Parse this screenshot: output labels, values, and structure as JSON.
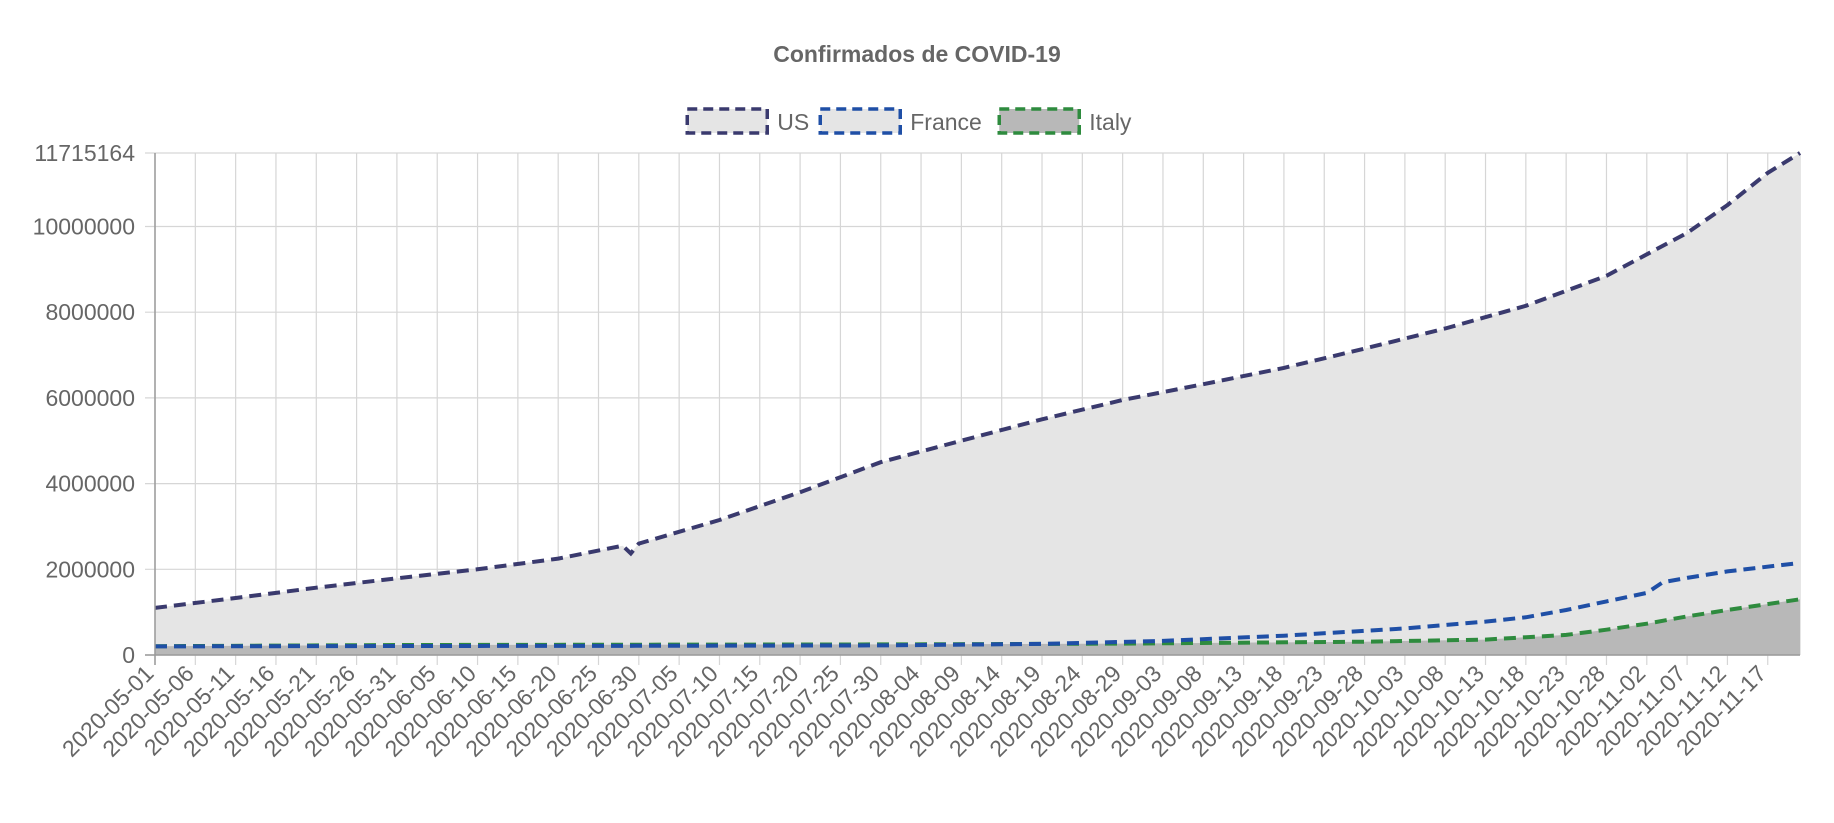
{
  "chart_data": {
    "type": "line",
    "title": "Confirmados de COVID-19",
    "legend_position": "top",
    "grid": true,
    "fill": true,
    "line_style": "dashed",
    "x_tick_labels": [
      "2020-05-01",
      "2020-05-06",
      "2020-05-11",
      "2020-05-16",
      "2020-05-21",
      "2020-05-26",
      "2020-05-31",
      "2020-06-05",
      "2020-06-10",
      "2020-06-15",
      "2020-06-20",
      "2020-06-25",
      "2020-06-30",
      "2020-07-05",
      "2020-07-10",
      "2020-07-15",
      "2020-07-20",
      "2020-07-25",
      "2020-07-30",
      "2020-08-04",
      "2020-08-09",
      "2020-08-14",
      "2020-08-19",
      "2020-08-24",
      "2020-08-29",
      "2020-09-03",
      "2020-09-08",
      "2020-09-13",
      "2020-09-18",
      "2020-09-23",
      "2020-09-28",
      "2020-10-03",
      "2020-10-08",
      "2020-10-13",
      "2020-10-18",
      "2020-10-23",
      "2020-10-28",
      "2020-11-02",
      "2020-11-07",
      "2020-11-12",
      "2020-11-17"
    ],
    "x_range": [
      "2020-05-01",
      "2020-11-21"
    ],
    "y_ticks": [
      0,
      2000000,
      4000000,
      6000000,
      8000000,
      10000000,
      11715164
    ],
    "ylim": [
      0,
      11715164
    ],
    "series": [
      {
        "name": "US",
        "color": "#3a3a6e",
        "fill_color": "#e5e5e5",
        "points": [
          [
            "2020-05-01",
            1100000
          ],
          [
            "2020-05-11",
            1330000
          ],
          [
            "2020-05-21",
            1570000
          ],
          [
            "2020-05-31",
            1790000
          ],
          [
            "2020-06-10",
            2000000
          ],
          [
            "2020-06-20",
            2250000
          ],
          [
            "2020-06-28",
            2550000
          ],
          [
            "2020-06-29",
            2370000
          ],
          [
            "2020-06-30",
            2600000
          ],
          [
            "2020-07-10",
            3150000
          ],
          [
            "2020-07-20",
            3800000
          ],
          [
            "2020-07-30",
            4500000
          ],
          [
            "2020-08-09",
            5000000
          ],
          [
            "2020-08-19",
            5500000
          ],
          [
            "2020-08-29",
            5950000
          ],
          [
            "2020-09-08",
            6320000
          ],
          [
            "2020-09-18",
            6700000
          ],
          [
            "2020-09-28",
            7150000
          ],
          [
            "2020-10-08",
            7620000
          ],
          [
            "2020-10-18",
            8150000
          ],
          [
            "2020-10-28",
            8850000
          ],
          [
            "2020-11-07",
            9850000
          ],
          [
            "2020-11-12",
            10500000
          ],
          [
            "2020-11-17",
            11250000
          ],
          [
            "2020-11-21",
            11715164
          ]
        ]
      },
      {
        "name": "France",
        "color": "#1f4fa6",
        "fill_color": "#e5e5e5",
        "points": [
          [
            "2020-05-01",
            200000
          ],
          [
            "2020-06-01",
            210000
          ],
          [
            "2020-07-01",
            215000
          ],
          [
            "2020-07-30",
            225000
          ],
          [
            "2020-08-19",
            260000
          ],
          [
            "2020-09-03",
            330000
          ],
          [
            "2020-09-18",
            450000
          ],
          [
            "2020-10-03",
            620000
          ],
          [
            "2020-10-13",
            780000
          ],
          [
            "2020-10-18",
            880000
          ],
          [
            "2020-10-23",
            1050000
          ],
          [
            "2020-10-28",
            1250000
          ],
          [
            "2020-11-02",
            1450000
          ],
          [
            "2020-11-04",
            1700000
          ],
          [
            "2020-11-07",
            1800000
          ],
          [
            "2020-11-12",
            1950000
          ],
          [
            "2020-11-21",
            2150000
          ]
        ]
      },
      {
        "name": "Italy",
        "color": "#2e8b3e",
        "fill_color": "#b8b8b8",
        "points": [
          [
            "2020-05-01",
            205000
          ],
          [
            "2020-06-01",
            233000
          ],
          [
            "2020-07-01",
            240000
          ],
          [
            "2020-08-01",
            248000
          ],
          [
            "2020-08-29",
            265000
          ],
          [
            "2020-09-28",
            310000
          ],
          [
            "2020-10-13",
            360000
          ],
          [
            "2020-10-23",
            470000
          ],
          [
            "2020-10-28",
            590000
          ],
          [
            "2020-11-02",
            730000
          ],
          [
            "2020-11-07",
            900000
          ],
          [
            "2020-11-12",
            1050000
          ],
          [
            "2020-11-21",
            1300000
          ]
        ]
      }
    ]
  }
}
